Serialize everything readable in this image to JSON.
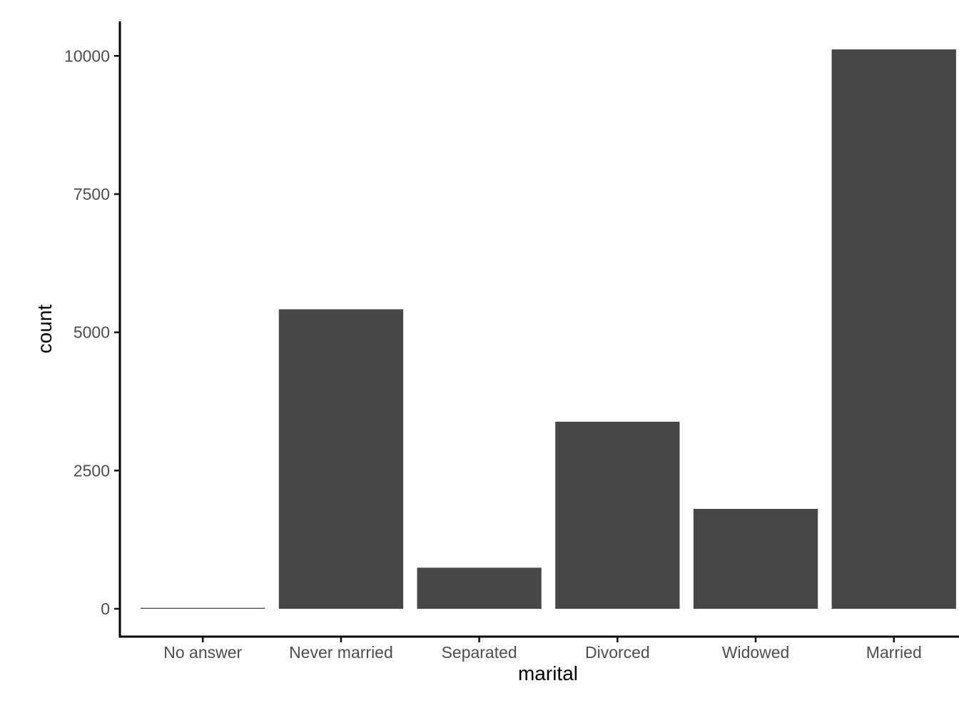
{
  "chart_data": {
    "type": "bar",
    "title": "",
    "xlabel": "marital",
    "ylabel": "count",
    "categories": [
      "No answer",
      "Never married",
      "Separated",
      "Divorced",
      "Widowed",
      "Married"
    ],
    "values": [
      17,
      5416,
      743,
      3383,
      1807,
      10117
    ],
    "y_ticks": [
      0,
      2500,
      5000,
      7500,
      10000
    ],
    "y_tick_labels": [
      "0",
      "2500",
      "5000",
      "7500",
      "10000"
    ],
    "ylim": [
      0,
      10623
    ],
    "grid": false,
    "legend": "none",
    "bar_color": "#474747",
    "axis_line_color": "#000000",
    "tick_mark_color": "#111111",
    "tick_label_color": "#4D4D4D",
    "axis_title_color": "#000000",
    "background_color": "#FFFFFF"
  }
}
